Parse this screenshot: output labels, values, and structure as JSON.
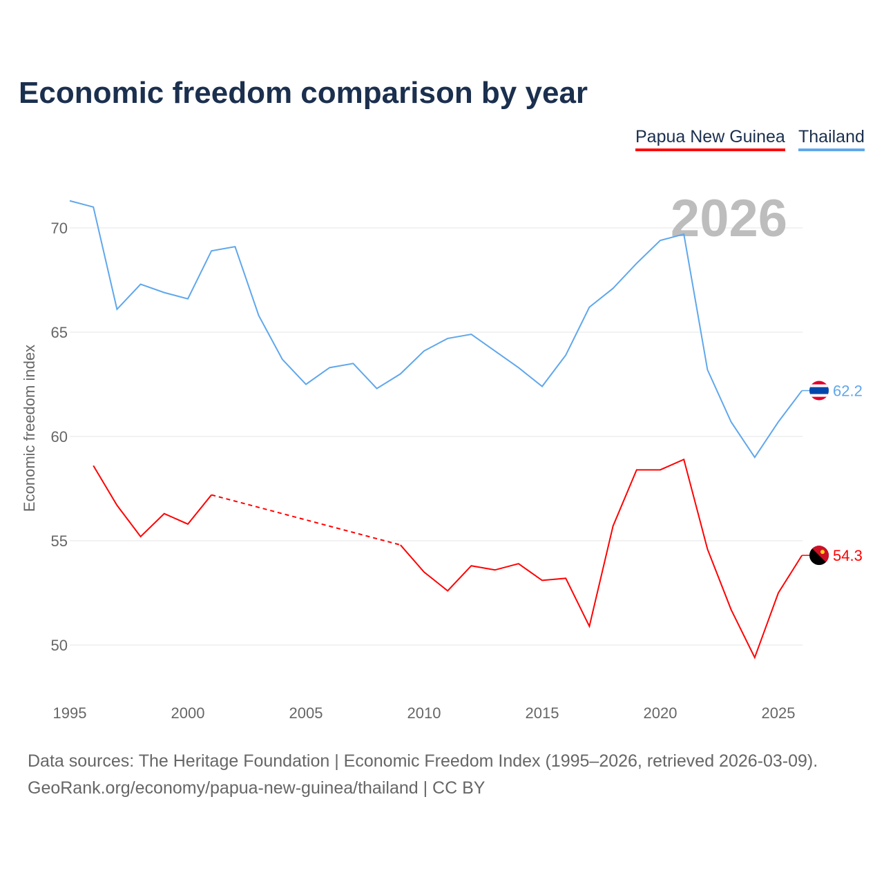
{
  "chart_data": {
    "type": "line",
    "title": "Economic freedom comparison by year",
    "ylabel": "Economic freedom index",
    "xlabel": "",
    "ylim": [
      47.5,
      72
    ],
    "xlim": [
      1995,
      2026
    ],
    "yticks": [
      50,
      55,
      60,
      65,
      70
    ],
    "xticks": [
      1995,
      2000,
      2005,
      2010,
      2015,
      2020,
      2025
    ],
    "year_label": "2026",
    "grid": true,
    "legend": "top-right",
    "x": [
      1995,
      1996,
      1997,
      1998,
      1999,
      2000,
      2001,
      2002,
      2003,
      2004,
      2005,
      2006,
      2007,
      2008,
      2009,
      2010,
      2011,
      2012,
      2013,
      2014,
      2015,
      2016,
      2017,
      2018,
      2019,
      2020,
      2021,
      2022,
      2023,
      2024,
      2025,
      2026
    ],
    "series": [
      {
        "name": "Papua New Guinea",
        "color": "#ff0000",
        "end_label": "54.3",
        "values": [
          null,
          58.6,
          56.7,
          55.2,
          56.3,
          55.8,
          57.2,
          null,
          null,
          null,
          null,
          null,
          null,
          null,
          54.8,
          53.5,
          52.6,
          53.8,
          53.6,
          53.9,
          53.1,
          53.2,
          50.9,
          55.7,
          58.4,
          58.4,
          58.9,
          54.6,
          51.7,
          49.4,
          52.5,
          54.3
        ]
      },
      {
        "name": "Thailand",
        "color": "#5fa7ec",
        "end_label": "62.2",
        "values": [
          71.3,
          71.0,
          66.1,
          67.3,
          66.9,
          66.6,
          68.9,
          69.1,
          65.8,
          63.7,
          62.5,
          63.3,
          63.5,
          62.3,
          63.0,
          64.1,
          64.7,
          64.9,
          64.1,
          63.3,
          62.4,
          63.9,
          66.2,
          67.1,
          68.3,
          69.4,
          69.7,
          63.2,
          60.7,
          59.0,
          60.7,
          62.2
        ]
      }
    ]
  },
  "footer": {
    "line1": "Data sources: The Heritage Foundation | Economic Freedom Index (1995–2026, retrieved 2026-03-09).",
    "line2": "GeoRank.org/economy/papua-new-guinea/thailand | CC BY"
  }
}
